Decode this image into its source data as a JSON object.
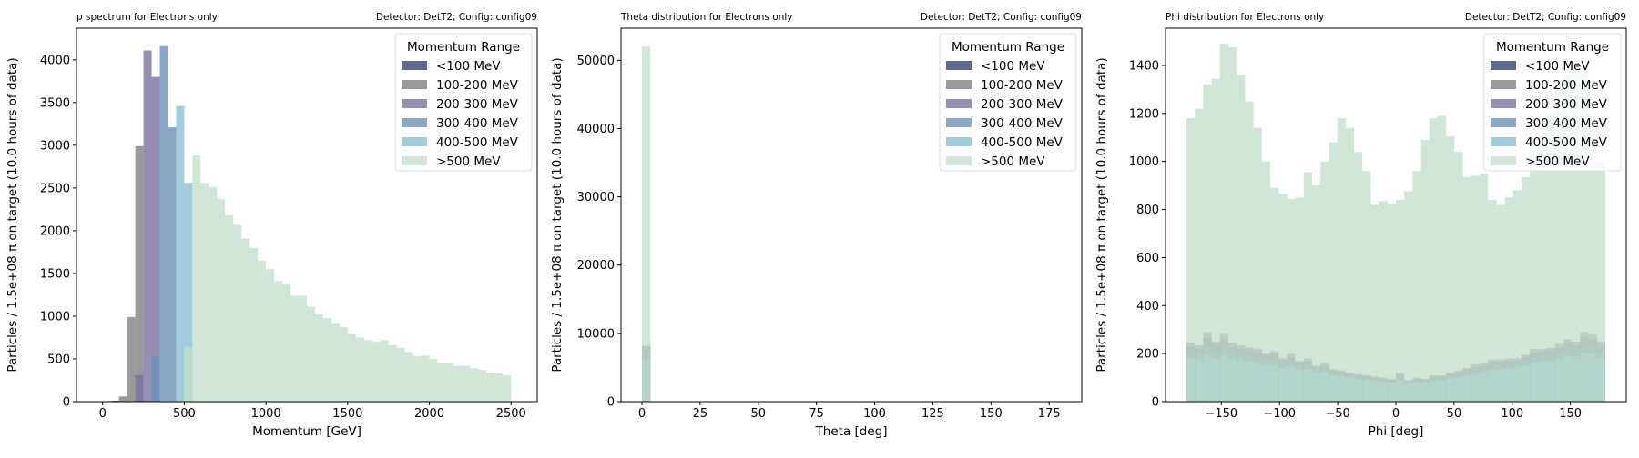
{
  "colors": {
    "lt100": "#303f73",
    "100to200": "#7e7e7e",
    "200to300": "#7a6f9e",
    "300to400": "#6a8fb8",
    "400to500": "#88bdd4",
    "gt500": "#c3dfca"
  },
  "chart_data": [
    {
      "type": "bar",
      "histogram": true,
      "stacked": false,
      "title": "p spectrum for Electrons only",
      "title_right": "Detector: DetT2; Config: config09",
      "xlabel": "Momentum [GeV]",
      "ylabel": "Particles / 1.5e+08 π on target (10.0 hours of data)",
      "xlim": [
        -160,
        2660
      ],
      "ylim": [
        0,
        4370
      ],
      "xticks": [
        0,
        500,
        1000,
        1500,
        2000,
        2500
      ],
      "yticks": [
        0,
        500,
        1000,
        1500,
        2000,
        2500,
        3000,
        3500,
        4000
      ],
      "legend": {
        "title": "Momentum Range",
        "placement": "top-right"
      },
      "bin_edges": [
        0,
        50,
        100,
        150,
        200,
        250,
        300,
        350,
        400,
        450,
        500,
        550,
        600,
        650,
        700,
        750,
        800,
        850,
        900,
        950,
        1000,
        1050,
        1100,
        1150,
        1200,
        1250,
        1300,
        1350,
        1400,
        1450,
        1500,
        1550,
        1600,
        1650,
        1700,
        1750,
        1800,
        1850,
        1900,
        1950,
        2000,
        2050,
        2100,
        2150,
        2200,
        2250,
        2300,
        2350,
        2400,
        2450,
        2500
      ],
      "series": [
        {
          "name": "<100 MeV",
          "color_key": "lt100",
          "values": [
            5,
            10,
            0,
            0,
            0,
            0,
            0,
            0,
            0,
            0,
            0,
            0,
            0,
            0,
            0,
            0,
            0,
            0,
            0,
            0,
            0,
            0,
            0,
            0,
            0,
            0,
            0,
            0,
            0,
            0,
            0,
            0,
            0,
            0,
            0,
            0,
            0,
            0,
            0,
            0,
            0,
            0,
            0,
            0,
            0,
            0,
            0,
            0,
            0,
            0
          ]
        },
        {
          "name": "100-200 MeV",
          "color_key": "100to200",
          "values": [
            0,
            0,
            60,
            990,
            2990,
            0,
            0,
            0,
            0,
            0,
            0,
            0,
            0,
            0,
            0,
            0,
            0,
            0,
            0,
            0,
            0,
            0,
            0,
            0,
            0,
            0,
            0,
            0,
            0,
            0,
            0,
            0,
            0,
            0,
            0,
            0,
            0,
            0,
            0,
            0,
            0,
            0,
            0,
            0,
            0,
            0,
            0,
            0,
            0,
            0
          ]
        },
        {
          "name": "200-300 MeV",
          "color_key": "200to300",
          "values": [
            0,
            0,
            0,
            0,
            310,
            4110,
            3800,
            0,
            0,
            0,
            0,
            0,
            0,
            0,
            0,
            0,
            0,
            0,
            0,
            0,
            0,
            0,
            0,
            0,
            0,
            0,
            0,
            0,
            0,
            0,
            0,
            0,
            0,
            0,
            0,
            0,
            0,
            0,
            0,
            0,
            0,
            0,
            0,
            0,
            0,
            0,
            0,
            0,
            0,
            0
          ]
        },
        {
          "name": "300-400 MeV",
          "color_key": "300to400",
          "values": [
            0,
            0,
            0,
            0,
            0,
            0,
            530,
            4160,
            3210,
            0,
            0,
            0,
            0,
            0,
            0,
            0,
            0,
            0,
            0,
            0,
            0,
            0,
            0,
            0,
            0,
            0,
            0,
            0,
            0,
            0,
            0,
            0,
            0,
            0,
            0,
            0,
            0,
            0,
            0,
            0,
            0,
            0,
            0,
            0,
            0,
            0,
            0,
            0,
            0,
            0
          ]
        },
        {
          "name": "400-500 MeV",
          "color_key": "400to500",
          "values": [
            0,
            0,
            0,
            0,
            0,
            0,
            0,
            0,
            0,
            3460,
            2560,
            0,
            0,
            0,
            0,
            0,
            0,
            0,
            0,
            0,
            0,
            0,
            0,
            0,
            0,
            0,
            0,
            0,
            0,
            0,
            0,
            0,
            0,
            0,
            0,
            0,
            0,
            0,
            0,
            0,
            0,
            0,
            0,
            0,
            0,
            0,
            0,
            0,
            0,
            0
          ]
        },
        {
          "name": ">500 MeV",
          "color_key": "gt500",
          "values": [
            0,
            0,
            0,
            0,
            0,
            0,
            0,
            0,
            0,
            0,
            640,
            2880,
            2560,
            2510,
            2370,
            2180,
            2070,
            1910,
            1800,
            1650,
            1550,
            1410,
            1380,
            1240,
            1240,
            1110,
            1020,
            980,
            920,
            870,
            790,
            750,
            720,
            700,
            720,
            660,
            630,
            580,
            530,
            540,
            500,
            450,
            450,
            420,
            420,
            390,
            370,
            340,
            330,
            310
          ]
        }
      ]
    },
    {
      "type": "bar",
      "histogram": true,
      "stacked": false,
      "title": "Theta distribution for Electrons only",
      "title_right": "Detector: DetT2; Config: config09",
      "xlabel": "Theta [deg]",
      "ylabel": "Particles / 1.5e+08 π on target (10.0 hours of data)",
      "xlim": [
        -9,
        189
      ],
      "ylim": [
        0,
        54700
      ],
      "xticks": [
        0,
        25,
        50,
        75,
        100,
        125,
        150,
        175
      ],
      "yticks": [
        0,
        10000,
        20000,
        30000,
        40000,
        50000
      ],
      "legend": {
        "title": "Momentum Range",
        "placement": "top-right"
      },
      "bin_edges": [
        0,
        3.6
      ],
      "series": [
        {
          "name": "<100 MeV",
          "color_key": "lt100",
          "values": [
            15
          ]
        },
        {
          "name": "100-200 MeV",
          "color_key": "100to200",
          "values": [
            8050
          ]
        },
        {
          "name": "200-300 MeV",
          "color_key": "200to300",
          "values": [
            8200
          ]
        },
        {
          "name": "300-400 MeV",
          "color_key": "300to400",
          "values": [
            7400
          ]
        },
        {
          "name": "400-500 MeV",
          "color_key": "400to500",
          "values": [
            6000
          ]
        },
        {
          "name": ">500 MeV",
          "color_key": "gt500",
          "values": [
            52000
          ]
        }
      ]
    },
    {
      "type": "bar",
      "histogram": true,
      "stacked": false,
      "title": "Phi distribution for Electrons only",
      "title_right": "Detector: DetT2; Config: config09",
      "xlabel": "Phi [deg]",
      "ylabel": "Particles / 1.5e+08 π on target (10.0 hours of data)",
      "xlim": [
        -198,
        198
      ],
      "ylim": [
        0,
        1555
      ],
      "xticks": [
        -150,
        -100,
        -50,
        0,
        50,
        100,
        150
      ],
      "yticks": [
        0,
        200,
        400,
        600,
        800,
        1000,
        1200,
        1400
      ],
      "legend": {
        "title": "Momentum Range",
        "placement": "top-right"
      },
      "bin_edges": [
        -180,
        -172.8,
        -165.6,
        -158.4,
        -151.2,
        -144,
        -136.8,
        -129.6,
        -122.4,
        -115.2,
        -108,
        -100.8,
        -93.6,
        -86.4,
        -79.2,
        -72,
        -64.8,
        -57.6,
        -50.4,
        -43.2,
        -36,
        -28.8,
        -21.6,
        -14.4,
        -7.2,
        0,
        7.2,
        14.4,
        21.6,
        28.8,
        36,
        43.2,
        50.4,
        57.6,
        64.8,
        72,
        79.2,
        86.4,
        93.6,
        100.8,
        108,
        115.2,
        122.4,
        129.6,
        136.8,
        144,
        151.2,
        158.4,
        165.6,
        172.8,
        180
      ],
      "series": [
        {
          "name": "<100 MeV",
          "color_key": "lt100",
          "values": [
            2,
            2,
            2,
            2,
            2,
            2,
            2,
            2,
            2,
            2,
            2,
            2,
            2,
            2,
            2,
            2,
            2,
            2,
            2,
            2,
            2,
            2,
            2,
            2,
            2,
            2,
            2,
            2,
            2,
            2,
            2,
            2,
            2,
            2,
            2,
            2,
            2,
            2,
            2,
            2,
            2,
            2,
            2,
            2,
            2,
            2,
            2,
            2,
            2,
            2
          ]
        },
        {
          "name": "100-200 MeV",
          "color_key": "100to200",
          "values": [
            245,
            235,
            290,
            250,
            285,
            245,
            235,
            225,
            220,
            200,
            210,
            180,
            200,
            170,
            180,
            150,
            160,
            135,
            130,
            120,
            115,
            110,
            105,
            100,
            95,
            120,
            90,
            100,
            95,
            110,
            110,
            120,
            130,
            140,
            155,
            160,
            175,
            175,
            180,
            180,
            195,
            220,
            220,
            225,
            240,
            260,
            250,
            290,
            280,
            250
          ]
        },
        {
          "name": "200-300 MeV",
          "color_key": "200to300",
          "values": [
            230,
            220,
            265,
            240,
            260,
            230,
            220,
            215,
            205,
            195,
            200,
            175,
            185,
            165,
            170,
            145,
            150,
            130,
            125,
            115,
            110,
            105,
            100,
            95,
            90,
            110,
            85,
            95,
            90,
            105,
            105,
            115,
            120,
            135,
            145,
            150,
            165,
            165,
            170,
            170,
            185,
            205,
            210,
            215,
            225,
            245,
            235,
            270,
            260,
            235
          ]
        },
        {
          "name": "300-400 MeV",
          "color_key": "300to400",
          "values": [
            210,
            200,
            230,
            215,
            230,
            210,
            200,
            195,
            185,
            175,
            180,
            160,
            170,
            150,
            155,
            135,
            140,
            120,
            115,
            108,
            102,
            98,
            94,
            90,
            86,
            100,
            82,
            88,
            86,
            96,
            98,
            108,
            112,
            122,
            132,
            138,
            150,
            152,
            158,
            158,
            170,
            185,
            190,
            195,
            205,
            222,
            215,
            240,
            235,
            212
          ]
        },
        {
          "name": "400-500 MeV",
          "color_key": "400to500",
          "values": [
            180,
            172,
            195,
            182,
            195,
            180,
            172,
            168,
            160,
            152,
            156,
            140,
            148,
            132,
            136,
            120,
            124,
            108,
            104,
            98,
            94,
            90,
            86,
            82,
            80,
            90,
            76,
            80,
            78,
            86,
            88,
            96,
            100,
            108,
            116,
            122,
            132,
            134,
            140,
            140,
            150,
            162,
            166,
            170,
            178,
            192,
            186,
            205,
            200,
            182
          ]
        },
        {
          "name": ">500 MeV",
          "color_key": "gt500",
          "values": [
            1180,
            1220,
            1320,
            1345,
            1490,
            1475,
            1360,
            1250,
            1140,
            1000,
            890,
            865,
            845,
            850,
            955,
            900,
            1000,
            1080,
            1180,
            1140,
            1040,
            960,
            820,
            835,
            825,
            840,
            875,
            960,
            1090,
            1180,
            1190,
            1105,
            1040,
            935,
            940,
            950,
            840,
            820,
            850,
            880,
            935,
            1030,
            1105,
            1200,
            1330,
            1360,
            1375,
            1400,
            1190,
            1000
          ]
        }
      ]
    }
  ]
}
